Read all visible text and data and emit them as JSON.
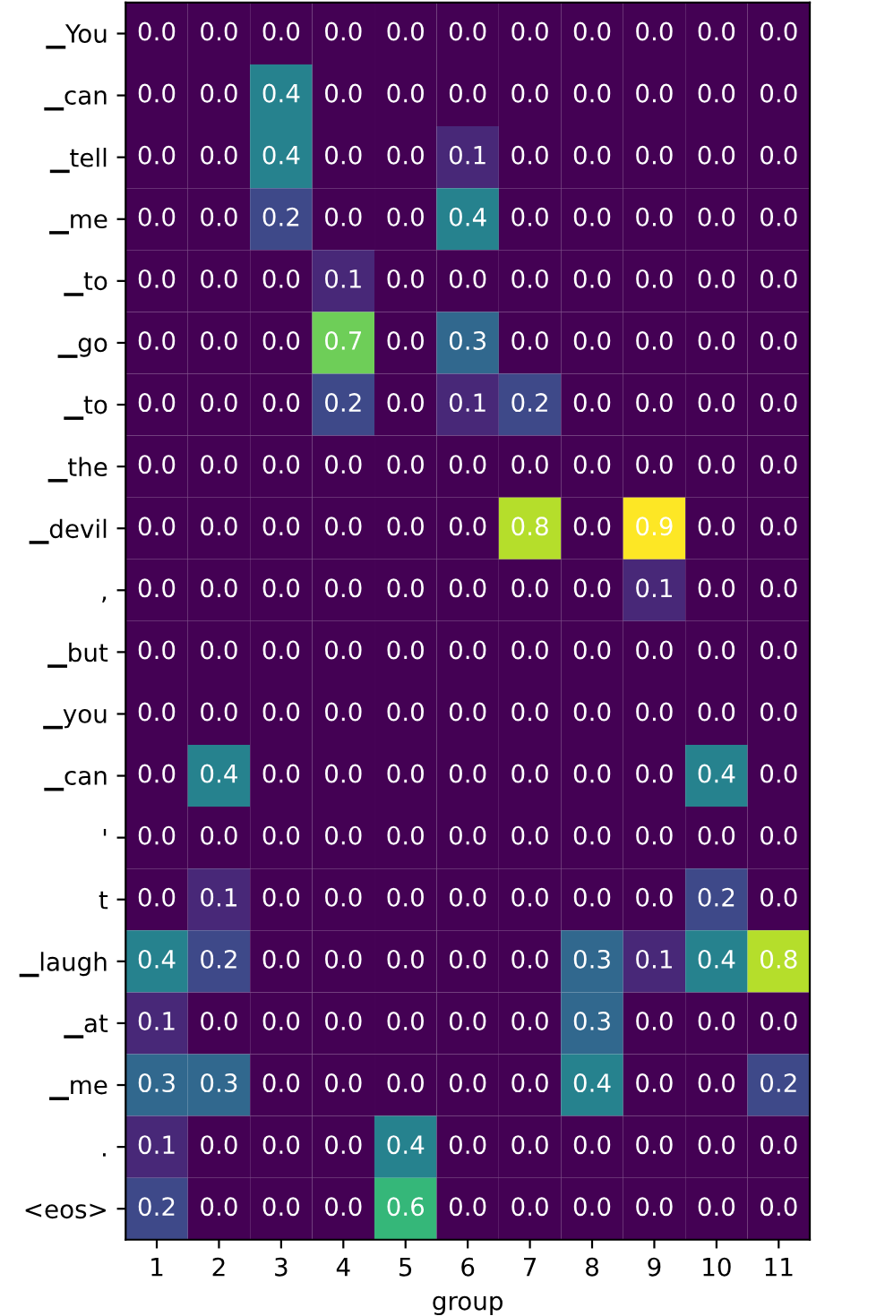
{
  "chart_data": {
    "type": "heatmap",
    "xlabel": "group",
    "categories": [
      "1",
      "2",
      "3",
      "4",
      "5",
      "6",
      "7",
      "8",
      "9",
      "10",
      "11"
    ],
    "y_categories": [
      "▁You",
      "▁can",
      "▁tell",
      "▁me",
      "▁to",
      "▁go",
      "▁to",
      "▁the",
      "▁devil",
      ",",
      "▁but",
      "▁you",
      "▁can",
      "'",
      "t",
      "▁laugh",
      "▁at",
      "▁me",
      ".",
      "<eos>"
    ],
    "cells": [
      [
        0,
        0,
        0,
        0,
        0,
        0,
        0,
        0,
        0,
        0,
        0
      ],
      [
        0,
        0,
        0.4,
        0,
        0,
        0,
        0,
        0,
        0,
        0,
        0
      ],
      [
        0,
        0,
        0.4,
        0,
        0,
        0.1,
        0,
        0,
        0,
        0,
        0
      ],
      [
        0,
        0,
        0.2,
        0,
        0,
        0.4,
        0,
        0,
        0,
        0,
        0
      ],
      [
        0,
        0,
        0,
        0.1,
        0,
        0,
        0,
        0,
        0,
        0,
        0
      ],
      [
        0,
        0,
        0,
        0.7,
        0,
        0.3,
        0,
        0,
        0,
        0,
        0
      ],
      [
        0,
        0,
        0,
        0.2,
        0,
        0.1,
        0.2,
        0,
        0,
        0,
        0
      ],
      [
        0,
        0,
        0,
        0,
        0,
        0,
        0,
        0,
        0,
        0,
        0
      ],
      [
        0,
        0,
        0,
        0,
        0,
        0,
        0.8,
        0,
        0.9,
        0,
        0
      ],
      [
        0,
        0,
        0,
        0,
        0,
        0,
        0,
        0,
        0.1,
        0,
        0
      ],
      [
        0,
        0,
        0,
        0,
        0,
        0,
        0,
        0,
        0,
        0,
        0
      ],
      [
        0,
        0,
        0,
        0,
        0,
        0,
        0,
        0,
        0,
        0,
        0
      ],
      [
        0,
        0.4,
        0,
        0,
        0,
        0,
        0,
        0,
        0,
        0.4,
        0
      ],
      [
        0,
        0,
        0,
        0,
        0,
        0,
        0,
        0,
        0,
        0,
        0
      ],
      [
        0,
        0.1,
        0,
        0,
        0,
        0,
        0,
        0,
        0,
        0.2,
        0
      ],
      [
        0.4,
        0.2,
        0,
        0,
        0,
        0,
        0,
        0.3,
        0.1,
        0.4,
        0.8
      ],
      [
        0.1,
        0,
        0,
        0,
        0,
        0,
        0,
        0.3,
        0,
        0,
        0
      ],
      [
        0.3,
        0.3,
        0,
        0,
        0,
        0,
        0,
        0.4,
        0,
        0,
        0.2
      ],
      [
        0.1,
        0,
        0,
        0,
        0.4,
        0,
        0,
        0,
        0,
        0,
        0
      ],
      [
        0.2,
        0,
        0,
        0,
        0.6,
        0,
        0,
        0,
        0,
        0,
        0
      ]
    ],
    "cell_labels": [
      [
        "0.0",
        "0.0",
        "0.0",
        "0.0",
        "0.0",
        "0.0",
        "0.0",
        "0.0",
        "0.0",
        "0.0",
        "0.0"
      ],
      [
        "0.0",
        "0.0",
        "0.4",
        "0.0",
        "0.0",
        "0.0",
        "0.0",
        "0.0",
        "0.0",
        "0.0",
        "0.0"
      ],
      [
        "0.0",
        "0.0",
        "0.4",
        "0.0",
        "0.0",
        "0.1",
        "0.0",
        "0.0",
        "0.0",
        "0.0",
        "0.0"
      ],
      [
        "0.0",
        "0.0",
        "0.2",
        "0.0",
        "0.0",
        "0.4",
        "0.0",
        "0.0",
        "0.0",
        "0.0",
        "0.0"
      ],
      [
        "0.0",
        "0.0",
        "0.0",
        "0.1",
        "0.0",
        "0.0",
        "0.0",
        "0.0",
        "0.0",
        "0.0",
        "0.0"
      ],
      [
        "0.0",
        "0.0",
        "0.0",
        "0.7",
        "0.0",
        "0.3",
        "0.0",
        "0.0",
        "0.0",
        "0.0",
        "0.0"
      ],
      [
        "0.0",
        "0.0",
        "0.0",
        "0.2",
        "0.0",
        "0.1",
        "0.2",
        "0.0",
        "0.0",
        "0.0",
        "0.0"
      ],
      [
        "0.0",
        "0.0",
        "0.0",
        "0.0",
        "0.0",
        "0.0",
        "0.0",
        "0.0",
        "0.0",
        "0.0",
        "0.0"
      ],
      [
        "0.0",
        "0.0",
        "0.0",
        "0.0",
        "0.0",
        "0.0",
        "0.8",
        "0.0",
        "0.9",
        "0.0",
        "0.0"
      ],
      [
        "0.0",
        "0.0",
        "0.0",
        "0.0",
        "0.0",
        "0.0",
        "0.0",
        "0.0",
        "0.1",
        "0.0",
        "0.0"
      ],
      [
        "0.0",
        "0.0",
        "0.0",
        "0.0",
        "0.0",
        "0.0",
        "0.0",
        "0.0",
        "0.0",
        "0.0",
        "0.0"
      ],
      [
        "0.0",
        "0.0",
        "0.0",
        "0.0",
        "0.0",
        "0.0",
        "0.0",
        "0.0",
        "0.0",
        "0.0",
        "0.0"
      ],
      [
        "0.0",
        "0.4",
        "0.0",
        "0.0",
        "0.0",
        "0.0",
        "0.0",
        "0.0",
        "0.0",
        "0.4",
        "0.0"
      ],
      [
        "0.0",
        "0.0",
        "0.0",
        "0.0",
        "0.0",
        "0.0",
        "0.0",
        "0.0",
        "0.0",
        "0.0",
        "0.0"
      ],
      [
        "0.0",
        "0.1",
        "0.0",
        "0.0",
        "0.0",
        "0.0",
        "0.0",
        "0.0",
        "0.0",
        "0.2",
        "0.0"
      ],
      [
        "0.4",
        "0.2",
        "0.0",
        "0.0",
        "0.0",
        "0.0",
        "0.0",
        "0.3",
        "0.1",
        "0.4",
        "0.8"
      ],
      [
        "0.1",
        "0.0",
        "0.0",
        "0.0",
        "0.0",
        "0.0",
        "0.0",
        "0.3",
        "0.0",
        "0.0",
        "0.0"
      ],
      [
        "0.3",
        "0.3",
        "0.0",
        "0.0",
        "0.0",
        "0.0",
        "0.0",
        "0.4",
        "0.0",
        "0.0",
        "0.2"
      ],
      [
        "0.1",
        "0.0",
        "0.0",
        "0.0",
        "0.4",
        "0.0",
        "0.0",
        "0.0",
        "0.0",
        "0.0",
        "0.0"
      ],
      [
        "0.2",
        "0.0",
        "0.0",
        "0.0",
        "0.6",
        "0.0",
        "0.0",
        "0.0",
        "0.0",
        "0.0",
        "0.0"
      ]
    ]
  }
}
